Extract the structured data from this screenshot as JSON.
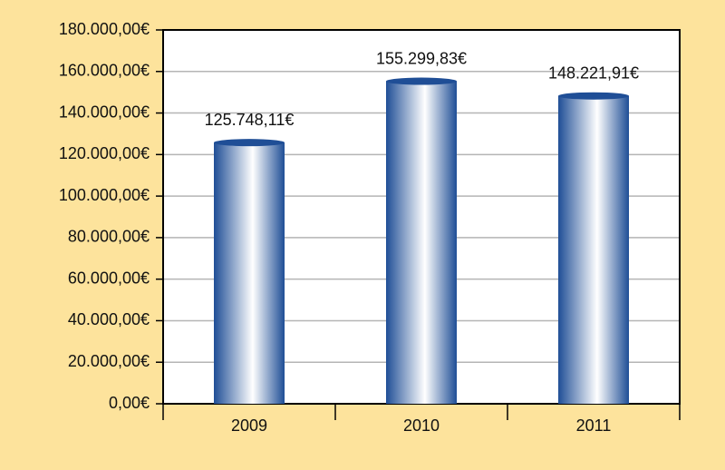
{
  "chart_data": {
    "type": "bar",
    "categories": [
      "2009",
      "2010",
      "2011"
    ],
    "values": [
      125748.11,
      155299.83,
      148221.91
    ],
    "value_labels": [
      "125.748,11€",
      "155.299,83€",
      "148.221,91€"
    ],
    "color": "#1f4e96",
    "ylim": [
      0,
      180000
    ],
    "yticks": [
      {
        "value": 0,
        "label": "0,00€"
      },
      {
        "value": 20000,
        "label": "20.000,00€"
      },
      {
        "value": 40000,
        "label": "40.000,00€"
      },
      {
        "value": 60000,
        "label": "60.000,00€"
      },
      {
        "value": 80000,
        "label": "80.000,00€"
      },
      {
        "value": 100000,
        "label": "100.000,00€"
      },
      {
        "value": 120000,
        "label": "120.000,00€"
      },
      {
        "value": 140000,
        "label": "140.000,00€"
      },
      {
        "value": 160000,
        "label": "160.000,00€"
      },
      {
        "value": 180000,
        "label": "180.000,00€"
      }
    ],
    "grid": true
  }
}
